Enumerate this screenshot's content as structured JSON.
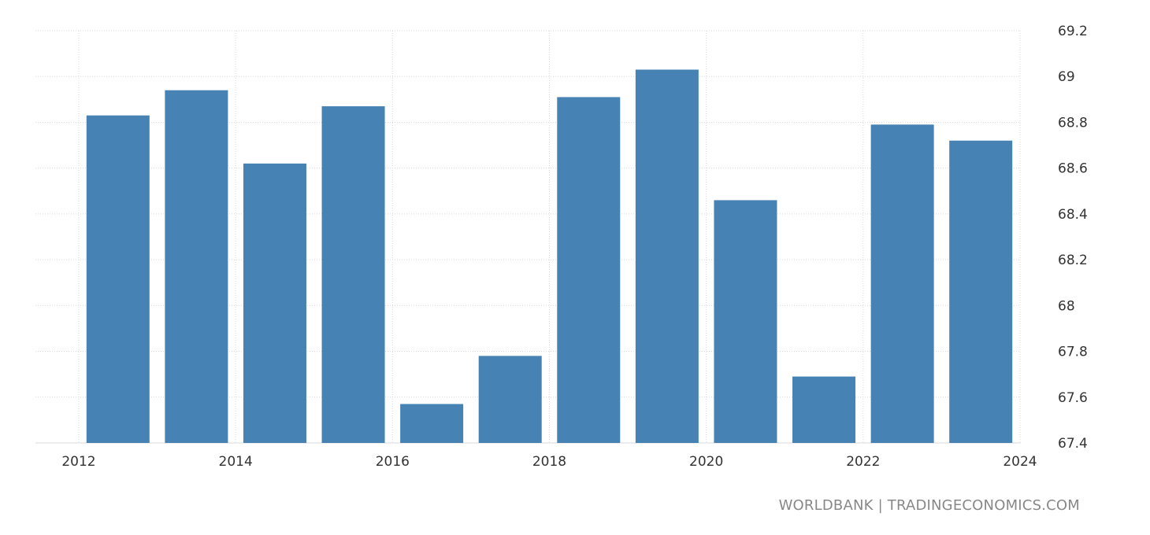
{
  "source": "WORLDBANK | TRADINGECONOMICS.COM",
  "colors": {
    "bar": "#4682b4",
    "grid": "#d9d9d9",
    "text": "#333333",
    "source": "#888888"
  },
  "chart_data": {
    "type": "bar",
    "title": "",
    "xlabel": "",
    "ylabel": "",
    "categories": [
      "2012",
      "2013",
      "2014",
      "2015",
      "2016",
      "2017",
      "2018",
      "2019",
      "2020",
      "2021",
      "2022",
      "2023"
    ],
    "values": [
      68.83,
      68.94,
      68.62,
      68.87,
      67.57,
      67.78,
      68.91,
      69.03,
      68.46,
      67.69,
      68.79,
      68.72
    ],
    "ylim": [
      67.4,
      69.2
    ],
    "y_ticks": [
      "67.4",
      "67.6",
      "67.8",
      "68",
      "68.2",
      "68.4",
      "68.6",
      "68.8",
      "69",
      "69.2"
    ],
    "x_ticks": [
      "2012",
      "2014",
      "2016",
      "2018",
      "2020",
      "2022",
      "2024"
    ],
    "x_tick_years": [
      2012,
      2014,
      2016,
      2018,
      2020,
      2022,
      2024
    ],
    "y_axis_position": "right",
    "grid": true
  }
}
